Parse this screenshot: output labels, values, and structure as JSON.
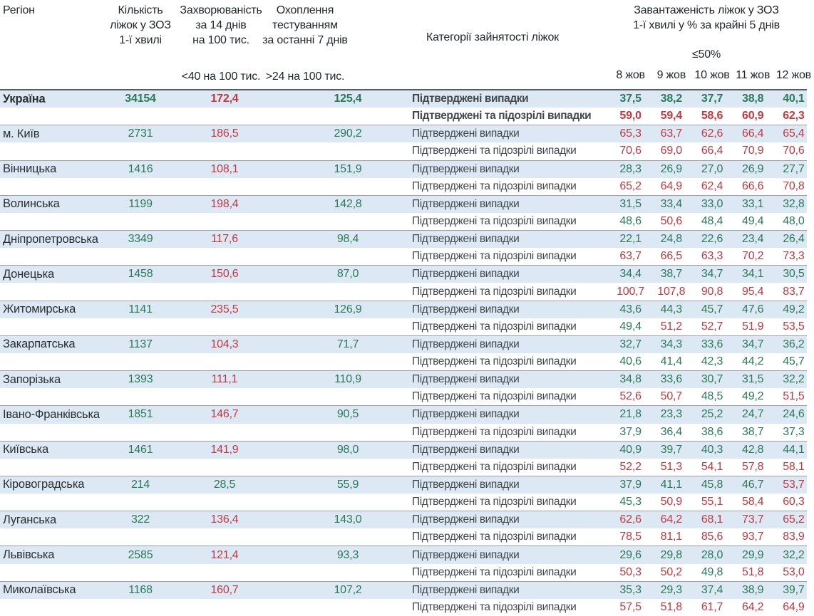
{
  "colors": {
    "green": "#2a7a58",
    "red": "#c13940",
    "row_highlight": "#dce9f4",
    "separator": "#9aa0a6"
  },
  "chart_data": {
    "type": "table",
    "header": {
      "region": "Регіон",
      "beds_lines": [
        "Кількість",
        "ліжок у ЗОЗ",
        "1-ї хвилі"
      ],
      "incidence_lines": [
        "Захворюваність",
        "за 14 днів",
        "на 100 тис."
      ],
      "testing_lines": [
        "Охоплення",
        "тестуванням",
        "за останні 7 днів"
      ],
      "category": "Категорії зайнятості ліжок",
      "occupancy_lines": [
        "Завантаженість ліжок у ЗОЗ",
        "1-ї хвилі у % за крайні 5 днів"
      ],
      "incidence_threshold": "<40 на 100 тис.",
      "testing_threshold": ">24 на 100 тис.",
      "occupancy_threshold": "≤50%",
      "dates": [
        "8 жов",
        "9 жов",
        "10 жов",
        "11 жов",
        "12 жов"
      ]
    },
    "category_labels": {
      "confirmed": "Підтверджені випадки",
      "suspected": "Підтверджені та підозрілі випадки"
    },
    "rules": {
      "incidence_green_below": 40,
      "testing_green_above": 24,
      "occupancy_green_max": 50
    },
    "rows": [
      {
        "region": "Україна",
        "beds": "34154",
        "incidence": "172,4",
        "testing": "125,4",
        "bold": true,
        "confirmed": [
          "37,5",
          "38,2",
          "37,7",
          "38,8",
          "40,1"
        ],
        "suspected": [
          "59,0",
          "59,4",
          "58,6",
          "60,9",
          "62,3"
        ]
      },
      {
        "region": "м. Київ",
        "beds": "2731",
        "incidence": "186,5",
        "testing": "290,2",
        "bold": false,
        "confirmed": [
          "65,3",
          "63,7",
          "62,6",
          "66,4",
          "65,4"
        ],
        "suspected": [
          "70,6",
          "69,0",
          "66,4",
          "70,9",
          "70,6"
        ]
      },
      {
        "region": "Вінницька",
        "beds": "1416",
        "incidence": "108,1",
        "testing": "151,9",
        "bold": false,
        "confirmed": [
          "28,3",
          "26,9",
          "27,0",
          "26,9",
          "27,7"
        ],
        "suspected": [
          "65,2",
          "64,9",
          "62,4",
          "66,6",
          "70,8"
        ]
      },
      {
        "region": "Волинська",
        "beds": "1199",
        "incidence": "198,4",
        "testing": "142,8",
        "bold": false,
        "confirmed": [
          "31,5",
          "33,4",
          "33,0",
          "33,1",
          "32,8"
        ],
        "suspected": [
          "48,6",
          "50,6",
          "48,4",
          "49,4",
          "48,0"
        ]
      },
      {
        "region": "Дніпропетровська",
        "beds": "3349",
        "incidence": "117,6",
        "testing": "98,4",
        "bold": false,
        "confirmed": [
          "22,1",
          "24,8",
          "22,6",
          "23,4",
          "26,4"
        ],
        "suspected": [
          "63,7",
          "66,5",
          "63,3",
          "70,2",
          "73,3"
        ]
      },
      {
        "region": "Донецька",
        "beds": "1458",
        "incidence": "150,6",
        "testing": "87,0",
        "bold": false,
        "confirmed": [
          "34,4",
          "38,7",
          "34,7",
          "34,1",
          "30,5"
        ],
        "suspected": [
          "100,7",
          "107,8",
          "90,8",
          "95,4",
          "83,7"
        ]
      },
      {
        "region": "Житомирська",
        "beds": "1141",
        "incidence": "235,5",
        "testing": "126,9",
        "bold": false,
        "confirmed": [
          "43,6",
          "44,3",
          "45,7",
          "47,6",
          "49,2"
        ],
        "suspected": [
          "49,4",
          "51,2",
          "52,7",
          "51,9",
          "53,5"
        ]
      },
      {
        "region": "Закарпатська",
        "beds": "1137",
        "incidence": "104,3",
        "testing": "71,7",
        "bold": false,
        "confirmed": [
          "32,7",
          "34,3",
          "33,6",
          "34,7",
          "36,2"
        ],
        "suspected": [
          "40,6",
          "41,4",
          "42,3",
          "44,2",
          "45,7"
        ]
      },
      {
        "region": "Запорізька",
        "beds": "1393",
        "incidence": "111,1",
        "testing": "110,9",
        "bold": false,
        "confirmed": [
          "34,8",
          "33,6",
          "30,7",
          "31,5",
          "32,2"
        ],
        "suspected": [
          "52,6",
          "50,7",
          "48,5",
          "49,2",
          "51,5"
        ]
      },
      {
        "region": "Івано-Франківська",
        "beds": "1851",
        "incidence": "146,7",
        "testing": "90,5",
        "bold": false,
        "confirmed": [
          "21,8",
          "23,3",
          "25,2",
          "24,7",
          "24,6"
        ],
        "suspected": [
          "37,9",
          "36,4",
          "38,6",
          "38,7",
          "37,3"
        ]
      },
      {
        "region": "Київська",
        "beds": "1461",
        "incidence": "141,9",
        "testing": "98,0",
        "bold": false,
        "confirmed": [
          "40,9",
          "39,7",
          "40,3",
          "42,8",
          "44,1"
        ],
        "suspected": [
          "52,2",
          "51,3",
          "54,1",
          "57,8",
          "58,1"
        ]
      },
      {
        "region": "Кіровоградська",
        "beds": "214",
        "incidence": "28,5",
        "testing": "55,9",
        "bold": false,
        "confirmed": [
          "37,9",
          "41,1",
          "45,8",
          "46,7",
          "53,7"
        ],
        "suspected": [
          "45,3",
          "50,9",
          "55,1",
          "58,4",
          "60,3"
        ]
      },
      {
        "region": "Луганська",
        "beds": "322",
        "incidence": "136,4",
        "testing": "143,0",
        "bold": false,
        "confirmed": [
          "62,6",
          "64,2",
          "68,1",
          "73,7",
          "65,2"
        ],
        "suspected": [
          "78,5",
          "81,1",
          "85,6",
          "93,7",
          "83,9"
        ]
      },
      {
        "region": "Львівська",
        "beds": "2585",
        "incidence": "121,4",
        "testing": "93,3",
        "bold": false,
        "confirmed": [
          "29,6",
          "29,8",
          "28,0",
          "29,9",
          "32,2"
        ],
        "suspected": [
          "50,3",
          "50,2",
          "49,8",
          "51,8",
          "53,0"
        ]
      },
      {
        "region": "Миколаївська",
        "beds": "1168",
        "incidence": "160,7",
        "testing": "107,2",
        "bold": false,
        "confirmed": [
          "35,3",
          "29,3",
          "37,4",
          "38,9",
          "39,7"
        ],
        "suspected": [
          "57,5",
          "51,8",
          "61,7",
          "64,2",
          "64,9"
        ]
      }
    ]
  }
}
